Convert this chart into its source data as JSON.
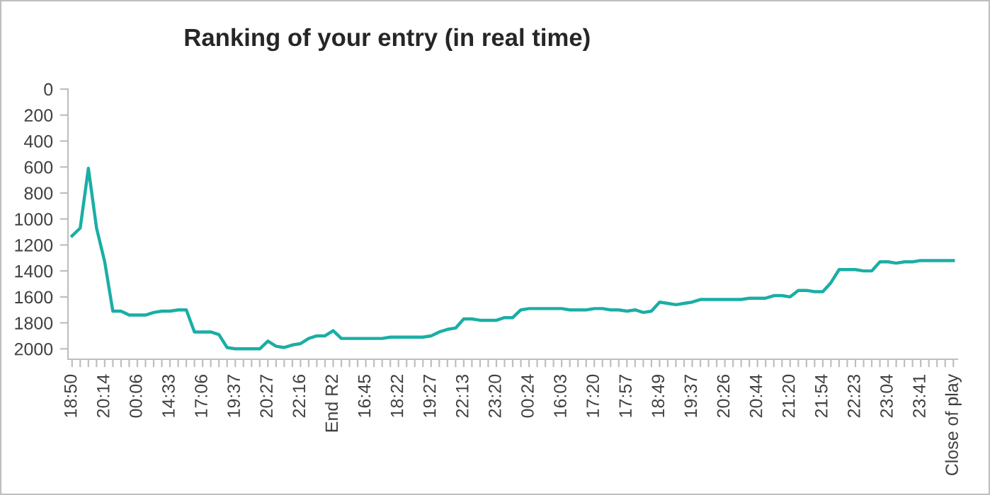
{
  "chart_data": {
    "type": "line",
    "title": "Ranking of your entry (in real time)",
    "categories": [
      "18:50",
      null,
      null,
      null,
      "20:14",
      null,
      null,
      null,
      "00:06",
      null,
      null,
      null,
      "14:33",
      null,
      null,
      null,
      "17:06",
      null,
      null,
      null,
      "19:37",
      null,
      null,
      null,
      "20:27",
      null,
      null,
      null,
      "22:16",
      null,
      null,
      null,
      "End R2",
      null,
      null,
      null,
      "16:45",
      null,
      null,
      null,
      "18:22",
      null,
      null,
      null,
      "19:27",
      null,
      null,
      null,
      "22:13",
      null,
      null,
      null,
      "23:20",
      null,
      null,
      null,
      "00:24",
      null,
      null,
      null,
      "16:03",
      null,
      null,
      null,
      "17:20",
      null,
      null,
      null,
      "17:57",
      null,
      null,
      null,
      "18:49",
      null,
      null,
      null,
      "19:37",
      null,
      null,
      null,
      "20:26",
      null,
      null,
      null,
      "20:44",
      null,
      null,
      null,
      "21:20",
      null,
      null,
      null,
      "21:54",
      null,
      null,
      null,
      "22:23",
      null,
      null,
      null,
      "23:04",
      null,
      null,
      null,
      "23:41",
      null,
      null,
      null,
      "Close of play"
    ],
    "series": [
      {
        "color": "#1aaea5",
        "values": [
          1130,
          1070,
          610,
          1070,
          1330,
          1710,
          1710,
          1740,
          1740,
          1740,
          1720,
          1710,
          1710,
          1700,
          1700,
          1870,
          1870,
          1870,
          1890,
          1990,
          2000,
          2000,
          2000,
          2000,
          1940,
          1980,
          1990,
          1970,
          1960,
          1920,
          1900,
          1900,
          1860,
          1920,
          1920,
          1920,
          1920,
          1920,
          1920,
          1910,
          1910,
          1910,
          1910,
          1910,
          1900,
          1870,
          1850,
          1840,
          1770,
          1770,
          1780,
          1780,
          1780,
          1760,
          1760,
          1700,
          1690,
          1690,
          1690,
          1690,
          1690,
          1700,
          1700,
          1700,
          1690,
          1690,
          1700,
          1700,
          1710,
          1700,
          1720,
          1710,
          1640,
          1650,
          1660,
          1650,
          1640,
          1620,
          1620,
          1620,
          1620,
          1620,
          1620,
          1610,
          1610,
          1610,
          1590,
          1590,
          1600,
          1550,
          1550,
          1560,
          1560,
          1490,
          1390,
          1390,
          1390,
          1400,
          1400,
          1330,
          1330,
          1340,
          1330,
          1330,
          1320,
          1320,
          1320,
          1320,
          1320
        ]
      }
    ],
    "ylim": [
      2080,
      0
    ],
    "yticks": [
      0,
      200,
      400,
      600,
      800,
      1000,
      1200,
      1400,
      1600,
      1800,
      2000
    ],
    "grid": false,
    "marker": "none",
    "line_style": "solid"
  }
}
